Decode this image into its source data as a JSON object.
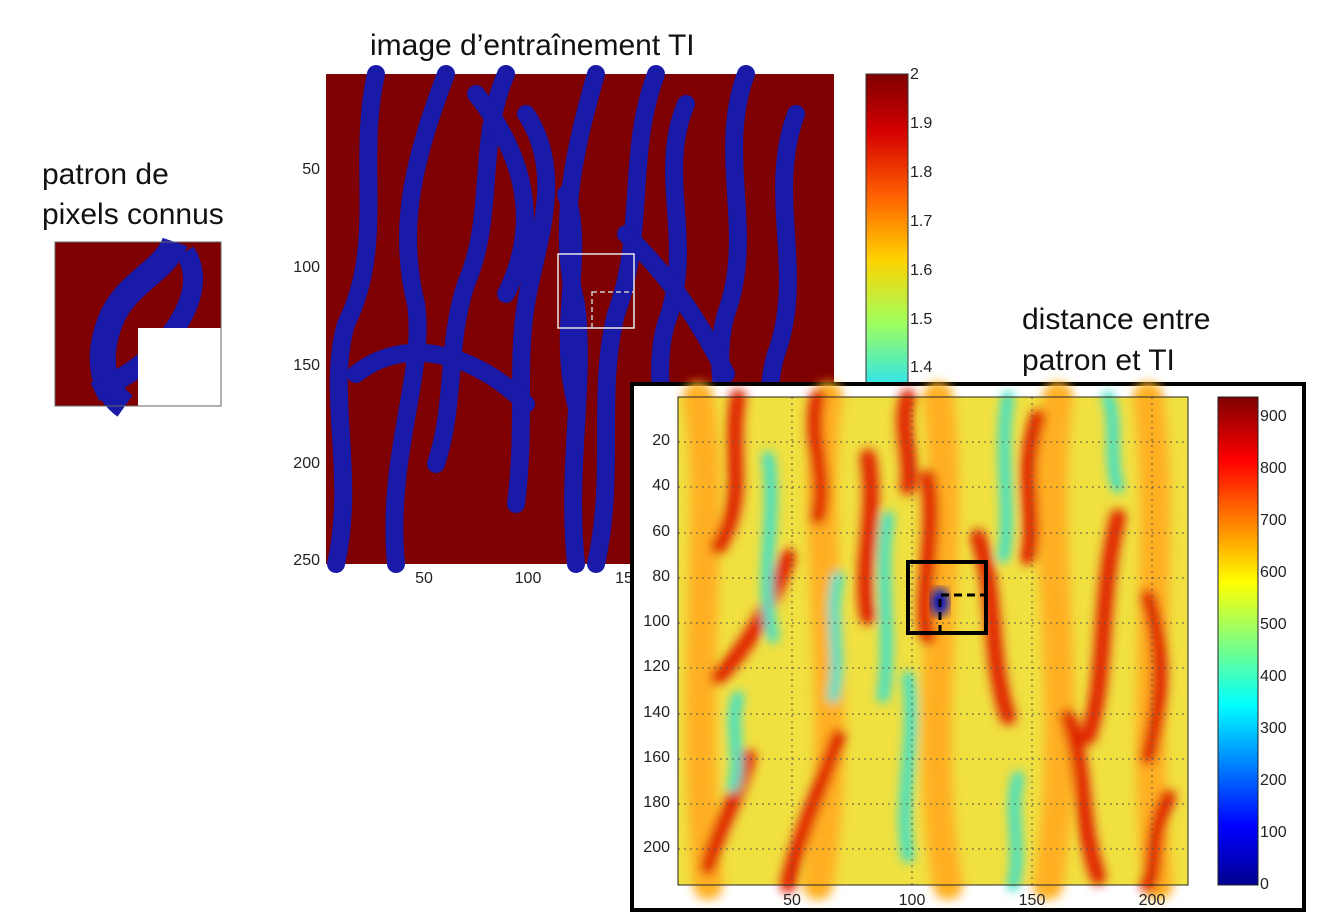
{
  "pattern": {
    "label_line1": "patron de",
    "label_line2": "pixels connus"
  },
  "training_image": {
    "title": "image d’entraînement TI",
    "y_ticks": [
      "50",
      "100",
      "150",
      "200",
      "250"
    ],
    "x_ticks": [
      "50",
      "100",
      "15"
    ],
    "colorbar_ticks": [
      "2",
      "1.9",
      "1.8",
      "1.7",
      "1.6",
      "1.5",
      "1.4"
    ],
    "colors": {
      "background": "#7f0000",
      "channel": "#1a1aa8"
    }
  },
  "distance_map": {
    "label_line1": "distance entre",
    "label_line2": "patron et TI",
    "y_ticks": [
      "20",
      "40",
      "60",
      "80",
      "100",
      "120",
      "140",
      "160",
      "180",
      "200"
    ],
    "x_ticks": [
      "50",
      "100",
      "150",
      "200"
    ],
    "colorbar_ticks": [
      "900",
      "800",
      "700",
      "600",
      "500",
      "400",
      "300",
      "200",
      "100",
      "0"
    ]
  }
}
